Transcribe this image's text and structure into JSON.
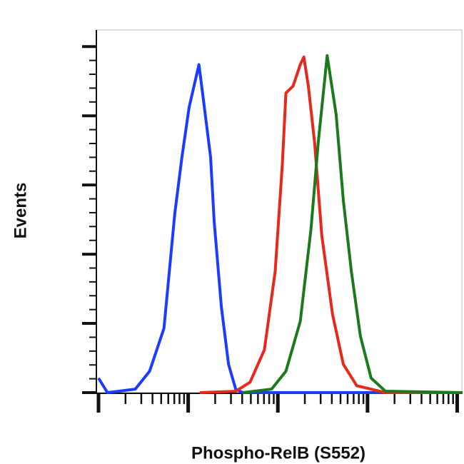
{
  "chart_data": {
    "type": "line",
    "x_label": "Phospho-RelB (S552)",
    "y_label": "Events",
    "xlim": [
      0,
      4.06
    ],
    "ylim": [
      0,
      5.24
    ],
    "xticks": [
      0,
      1,
      2,
      3,
      4
    ],
    "yticks": [
      0,
      1,
      2,
      3,
      4,
      5
    ],
    "series": [
      {
        "color": "#1a3cff",
        "x": [
          0,
          0.1,
          0.41,
          0.57,
          0.73,
          0.85,
          0.93,
          1.01,
          1.12,
          1.17,
          1.25,
          1.29,
          1.37,
          1.45,
          1.53,
          1.61,
          4.06
        ],
        "values": [
          0.21,
          0,
          0.05,
          0.31,
          0.93,
          2.58,
          3.4,
          4.12,
          4.74,
          4.23,
          3.4,
          2.47,
          1.24,
          0.41,
          0.05,
          0,
          0
        ]
      },
      {
        "color": "#e8281a",
        "x": [
          1.13,
          1.53,
          1.69,
          1.85,
          1.97,
          2.05,
          2.09,
          2.17,
          2.25,
          2.29,
          2.34,
          2.41,
          2.49,
          2.61,
          2.73,
          2.88,
          3.2,
          4.06
        ],
        "values": [
          0,
          0.02,
          0.15,
          0.62,
          1.75,
          3.3,
          4.33,
          4.43,
          4.74,
          4.85,
          4.43,
          3.61,
          2.27,
          1.13,
          0.41,
          0.1,
          0,
          0
        ]
      },
      {
        "color": "#1b7a1b",
        "x": [
          1.61,
          1.93,
          2.09,
          2.25,
          2.37,
          2.45,
          2.55,
          2.65,
          2.73,
          2.82,
          2.92,
          3.04,
          3.2,
          4.06
        ],
        "values": [
          0,
          0.05,
          0.31,
          1.03,
          2.37,
          3.61,
          4.87,
          4.02,
          2.78,
          1.75,
          0.82,
          0.21,
          0.02,
          0
        ]
      }
    ]
  }
}
